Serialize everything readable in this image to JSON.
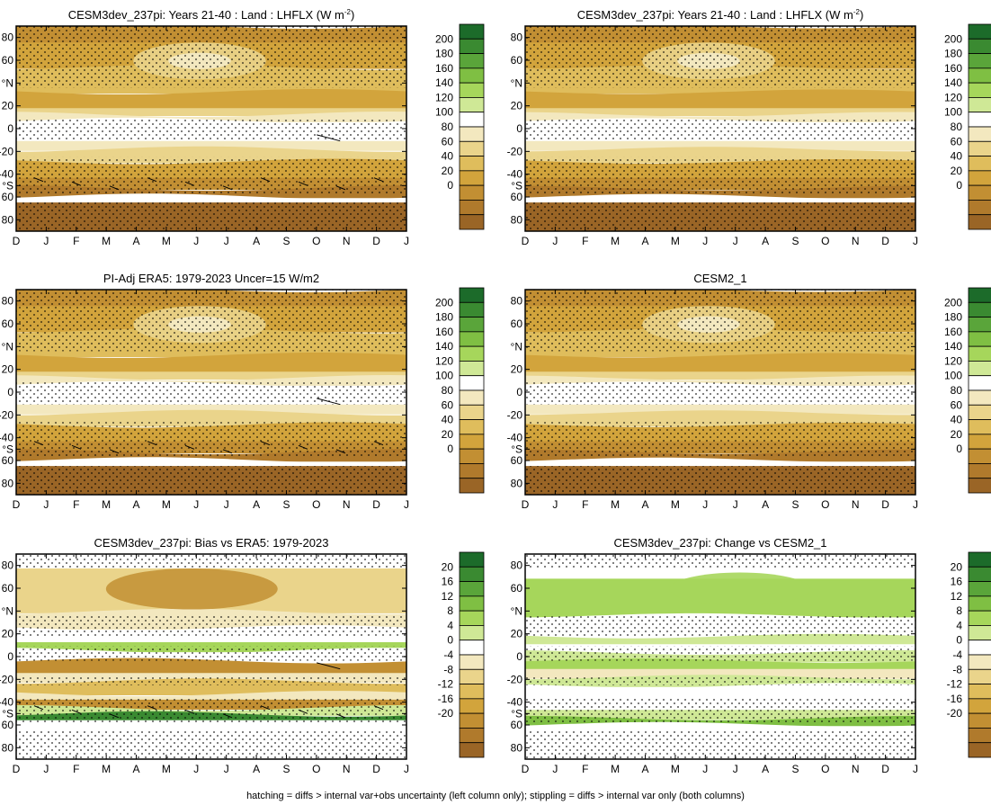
{
  "chart_data": [
    {
      "id": "p1",
      "type": "heatmap",
      "title": "CESM3dev_237pi: Years 21-40 : Land : LHFLX (W m",
      "title_sup": "-2",
      "title_end": ")",
      "x_tick_labels": [
        "D",
        "J",
        "F",
        "M",
        "A",
        "M",
        "J",
        "J",
        "A",
        "S",
        "O",
        "N",
        "D",
        "J"
      ],
      "y_tick_labels": [
        "80",
        "60",
        "°N",
        "20",
        "0",
        "-20",
        "-40",
        "°S",
        "60",
        "80"
      ],
      "y_values": [
        80,
        60,
        40,
        20,
        0,
        -20,
        -40,
        -50,
        -60,
        -80
      ],
      "colorbar_labels": [
        "200",
        "180",
        "160",
        "140",
        "120",
        "100",
        "80",
        "60",
        "40",
        "20",
        "0"
      ],
      "kind": "abs",
      "hatch": true
    },
    {
      "id": "p2",
      "type": "heatmap",
      "title": "CESM3dev_237pi: Years 21-40 : Land : LHFLX (W m",
      "title_sup": "-2",
      "title_end": ")",
      "x_tick_labels": [
        "D",
        "J",
        "F",
        "M",
        "A",
        "M",
        "J",
        "J",
        "A",
        "S",
        "O",
        "N",
        "D",
        "J"
      ],
      "y_tick_labels": [
        "80",
        "60",
        "°N",
        "20",
        "0",
        "-20",
        "-40",
        "°S",
        "60",
        "80"
      ],
      "y_values": [
        80,
        60,
        40,
        20,
        0,
        -20,
        -40,
        -50,
        -60,
        -80
      ],
      "colorbar_labels": [
        "200",
        "180",
        "160",
        "140",
        "120",
        "100",
        "80",
        "60",
        "40",
        "20",
        "0"
      ],
      "kind": "abs",
      "hatch": false
    },
    {
      "id": "p3",
      "type": "heatmap",
      "title": "PI-Adj ERA5: 1979-2023 Uncer=15 W/m2",
      "x_tick_labels": [
        "D",
        "J",
        "F",
        "M",
        "A",
        "M",
        "J",
        "J",
        "A",
        "S",
        "O",
        "N",
        "D",
        "J"
      ],
      "y_tick_labels": [
        "80",
        "60",
        "°N",
        "20",
        "0",
        "-20",
        "-40",
        "°S",
        "60",
        "80"
      ],
      "y_values": [
        80,
        60,
        40,
        20,
        0,
        -20,
        -40,
        -50,
        -60,
        -80
      ],
      "colorbar_labels": [
        "200",
        "180",
        "160",
        "140",
        "120",
        "100",
        "80",
        "60",
        "40",
        "20",
        "0"
      ],
      "kind": "abs",
      "hatch": true
    },
    {
      "id": "p4",
      "type": "heatmap",
      "title": "CESM2_1",
      "x_tick_labels": [
        "D",
        "J",
        "F",
        "M",
        "A",
        "M",
        "J",
        "J",
        "A",
        "S",
        "O",
        "N",
        "D",
        "J"
      ],
      "y_tick_labels": [
        "80",
        "60",
        "°N",
        "20",
        "0",
        "-20",
        "-40",
        "°S",
        "60",
        "80"
      ],
      "y_values": [
        80,
        60,
        40,
        20,
        0,
        -20,
        -40,
        -50,
        -60,
        -80
      ],
      "colorbar_labels": [
        "200",
        "180",
        "160",
        "140",
        "120",
        "100",
        "80",
        "60",
        "40",
        "20",
        "0"
      ],
      "kind": "abs",
      "hatch": false
    },
    {
      "id": "p5",
      "type": "heatmap",
      "title": "CESM3dev_237pi: Bias vs ERA5: 1979-2023",
      "x_tick_labels": [
        "D",
        "J",
        "F",
        "M",
        "A",
        "M",
        "J",
        "J",
        "A",
        "S",
        "O",
        "N",
        "D",
        "J"
      ],
      "y_tick_labels": [
        "80",
        "60",
        "°N",
        "20",
        "0",
        "-20",
        "-40",
        "°S",
        "60",
        "80"
      ],
      "y_values": [
        80,
        60,
        40,
        20,
        0,
        -20,
        -40,
        -50,
        -60,
        -80
      ],
      "colorbar_labels": [
        "20",
        "16",
        "12",
        "8",
        "4",
        "0",
        "-4",
        "-8",
        "-12",
        "-16",
        "-20"
      ],
      "kind": "bias",
      "hatch": true
    },
    {
      "id": "p6",
      "type": "heatmap",
      "title": "CESM3dev_237pi: Change vs CESM2_1",
      "x_tick_labels": [
        "D",
        "J",
        "F",
        "M",
        "A",
        "M",
        "J",
        "J",
        "A",
        "S",
        "O",
        "N",
        "D",
        "J"
      ],
      "y_tick_labels": [
        "80",
        "60",
        "°N",
        "20",
        "0",
        "-20",
        "-40",
        "°S",
        "60",
        "80"
      ],
      "y_values": [
        80,
        60,
        40,
        20,
        0,
        -20,
        -40,
        -50,
        -60,
        -80
      ],
      "colorbar_labels": [
        "20",
        "16",
        "12",
        "8",
        "4",
        "0",
        "-4",
        "-8",
        "-12",
        "-16",
        "-20"
      ],
      "kind": "change",
      "hatch": false
    }
  ],
  "colors": {
    "abs_scale": [
      "#1c6b2a",
      "#3a8a31",
      "#5aa53a",
      "#7fbf43",
      "#a6d65b",
      "#cfe896",
      "#ffffff",
      "#f3e8bf",
      "#ead48b",
      "#dfbd5c",
      "#d2a43c",
      "#c28f33",
      "#b07a2c",
      "#9a6526"
    ],
    "diff_scale": [
      "#1c6b2a",
      "#3a8a31",
      "#5aa53a",
      "#7fbf43",
      "#a6d65b",
      "#cfe896",
      "#ffffff",
      "#f3e8bf",
      "#ead48b",
      "#dfbd5c",
      "#d2a43c",
      "#c28f33",
      "#b07a2c",
      "#9a6526"
    ]
  },
  "footer": "hatching = diffs > internal var+obs uncertainty (left column only); stippling = diffs > internal var only (both columns)"
}
